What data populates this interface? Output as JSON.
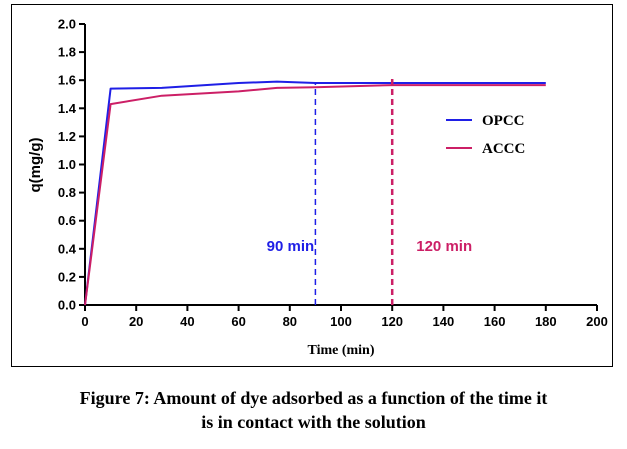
{
  "chart_data": {
    "type": "line",
    "title": "",
    "xlabel": "Time (min)",
    "ylabel": "q(mg/g)",
    "xlim": [
      0,
      200
    ],
    "ylim": [
      0,
      2.0
    ],
    "xticks": [
      "0",
      "20",
      "40",
      "60",
      "80",
      "100",
      "120",
      "140",
      "160",
      "180",
      "200"
    ],
    "yticks": [
      "0.0",
      "0.2",
      "0.4",
      "0.6",
      "0.8",
      "1.0",
      "1.2",
      "1.4",
      "1.6",
      "1.8",
      "2.0"
    ],
    "grid": false,
    "legend_position": "right",
    "series": [
      {
        "name": "OPCC",
        "color": "#1f1fe6",
        "x": [
          0,
          10,
          30,
          60,
          75,
          90,
          120,
          150,
          180
        ],
        "y": [
          0,
          1.54,
          1.545,
          1.58,
          1.59,
          1.58,
          1.58,
          1.58,
          1.58
        ]
      },
      {
        "name": "ACCC",
        "color": "#cc1f66",
        "x": [
          0,
          10,
          30,
          60,
          75,
          90,
          120,
          150,
          180
        ],
        "y": [
          0,
          1.43,
          1.49,
          1.52,
          1.545,
          1.55,
          1.565,
          1.565,
          1.565
        ]
      }
    ],
    "annotations": [
      {
        "text": "90 min",
        "x": 90,
        "color": "#1f1fe6"
      },
      {
        "text": "120 min",
        "x": 120,
        "color": "#cc1f66"
      }
    ]
  },
  "caption": {
    "line1": "Figure 7: Amount of dye adsorbed as a function of the time it",
    "line2": "is in contact with the solution"
  }
}
